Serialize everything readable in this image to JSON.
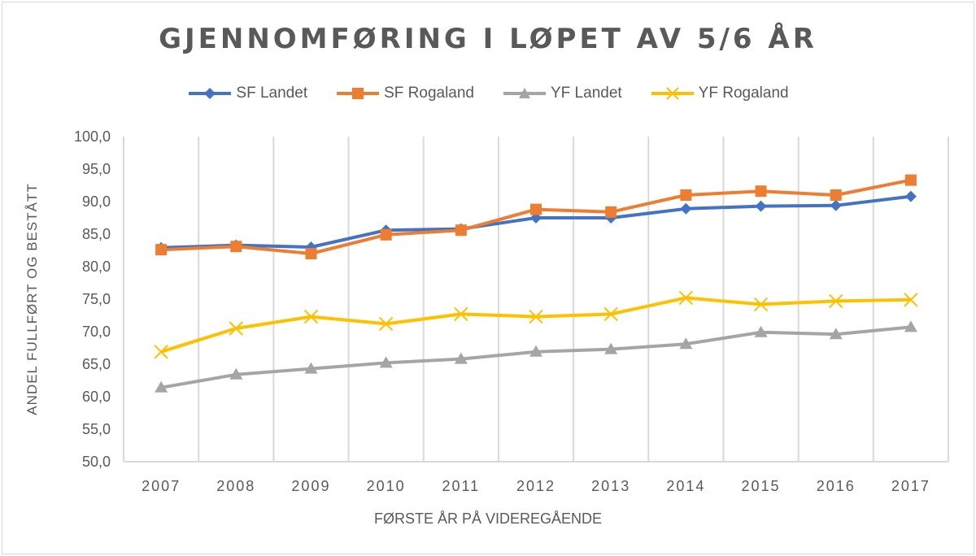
{
  "chart_data": {
    "type": "line",
    "title": "GJENNOMFØRING I LØPET AV 5/6 ÅR",
    "xlabel": "FØRSTE ÅR PÅ VIDEREGÅENDE",
    "ylabel": "ANDEL FULLFØRT OG BESTÅTT",
    "categories": [
      "2007",
      "2008",
      "2009",
      "2010",
      "2011",
      "2012",
      "2013",
      "2014",
      "2015",
      "2016",
      "2017"
    ],
    "ylim": [
      50,
      100
    ],
    "yticks": [
      "50,0",
      "55,0",
      "60,0",
      "65,0",
      "70,0",
      "75,0",
      "80,0",
      "85,0",
      "90,0",
      "95,0",
      "100,0"
    ],
    "ytick_values": [
      50,
      55,
      60,
      65,
      70,
      75,
      80,
      85,
      90,
      95,
      100
    ],
    "grid": "vertical",
    "legend_position": "top",
    "series": [
      {
        "name": "SF Landet",
        "color": "#4472C4",
        "marker": "diamond",
        "values": [
          82.9,
          83.3,
          83.0,
          85.6,
          85.8,
          87.5,
          87.5,
          88.9,
          89.3,
          89.4,
          90.8
        ]
      },
      {
        "name": "SF Rogaland",
        "color": "#ED7D31",
        "marker": "square",
        "values": [
          82.6,
          83.1,
          82.0,
          84.9,
          85.6,
          88.8,
          88.4,
          91.0,
          91.6,
          91.0,
          93.3
        ]
      },
      {
        "name": "YF Landet",
        "color": "#A5A5A5",
        "marker": "triangle",
        "values": [
          61.4,
          63.4,
          64.3,
          65.2,
          65.8,
          66.9,
          67.3,
          68.1,
          69.9,
          69.6,
          70.7
        ]
      },
      {
        "name": "YF Rogaland",
        "color": "#FFC000",
        "marker": "x",
        "values": [
          66.9,
          70.5,
          72.3,
          71.2,
          72.7,
          72.3,
          72.7,
          75.2,
          74.2,
          74.7,
          74.9
        ]
      }
    ]
  }
}
